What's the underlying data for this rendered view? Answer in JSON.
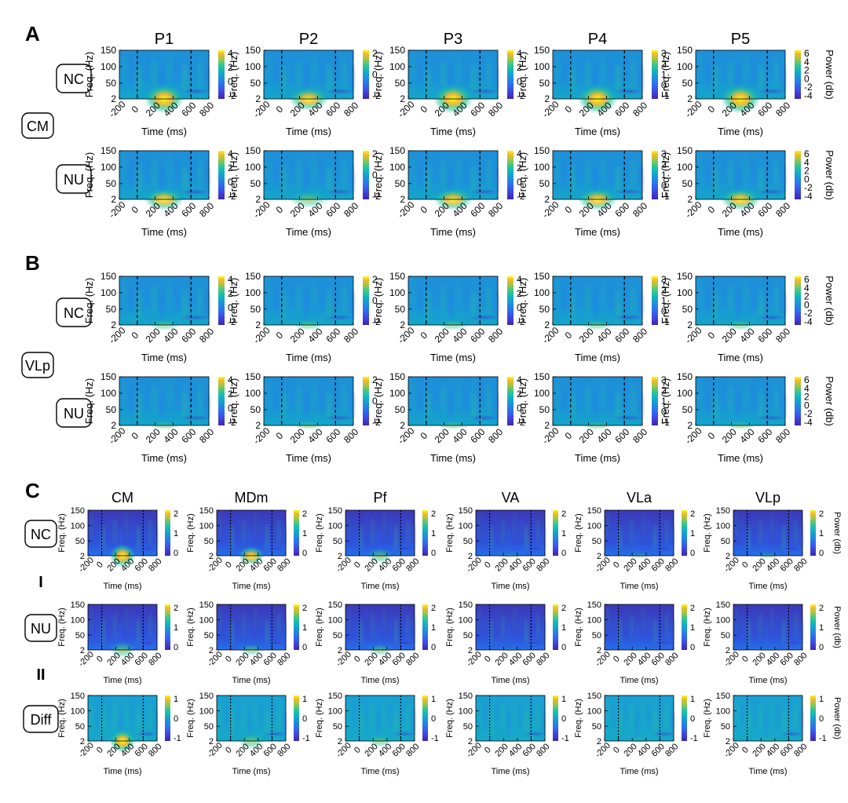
{
  "panels": [
    {
      "letter": "A",
      "columns": [
        "P1",
        "P2",
        "P3",
        "P4",
        "P5"
      ],
      "row_group_label": "CM",
      "rows": [
        {
          "label": "NC",
          "intensity": 1.0
        },
        {
          "label": "NU",
          "intensity": 0.75
        }
      ]
    },
    {
      "letter": "B",
      "columns": [
        "",
        "",
        "",
        "",
        ""
      ],
      "row_group_label": "VLp",
      "rows": [
        {
          "label": "NC",
          "intensity": 0.45
        },
        {
          "label": "NU",
          "intensity": 0.35
        }
      ]
    },
    {
      "letter": "C",
      "columns": [
        "CM",
        "MDm",
        "Pf",
        "VA",
        "VLa",
        "VLp"
      ],
      "row_separators": [
        "I",
        "II"
      ],
      "rows": [
        {
          "label": "NC",
          "intensity": 1.0
        },
        {
          "label": "NU",
          "intensity": 0.6
        },
        {
          "label": "Diff",
          "intensity": 0.8
        }
      ]
    }
  ],
  "chart_data": {
    "type": "heatmap",
    "colormap": "parula",
    "xlabel": "Time (ms)",
    "ylabel": "Freq. (Hz)",
    "colorbar_label": "Power (db)",
    "x_ticks": [
      "-200",
      "0",
      "200",
      "400",
      "600",
      "800"
    ],
    "y_ticks": [
      "150",
      "100",
      "50",
      "2"
    ],
    "xlim": [
      -200,
      800
    ],
    "ylim": [
      2,
      150
    ],
    "event_markers_ms": [
      0,
      600
    ],
    "colorbar_ticks_AB": [
      [
        "4",
        "2",
        "0",
        "-2"
      ],
      [
        "2",
        "0",
        "-2"
      ],
      [
        "4",
        "2",
        "0",
        "-2"
      ],
      [
        "3",
        "2",
        "1",
        "0",
        "-1"
      ],
      [
        "6",
        "4",
        "2",
        "0",
        "-2",
        "-4"
      ]
    ],
    "colorbar_ticks_C": [
      [
        "2",
        "1",
        "0"
      ],
      [
        "2",
        "1",
        "0"
      ],
      [
        "1",
        "0",
        "-1"
      ]
    ],
    "colorbar_ticks_C_last": [
      [
        "2",
        "1",
        "0"
      ],
      [
        "2",
        "1",
        "0"
      ],
      [
        "1",
        "0",
        "-1"
      ]
    ]
  }
}
